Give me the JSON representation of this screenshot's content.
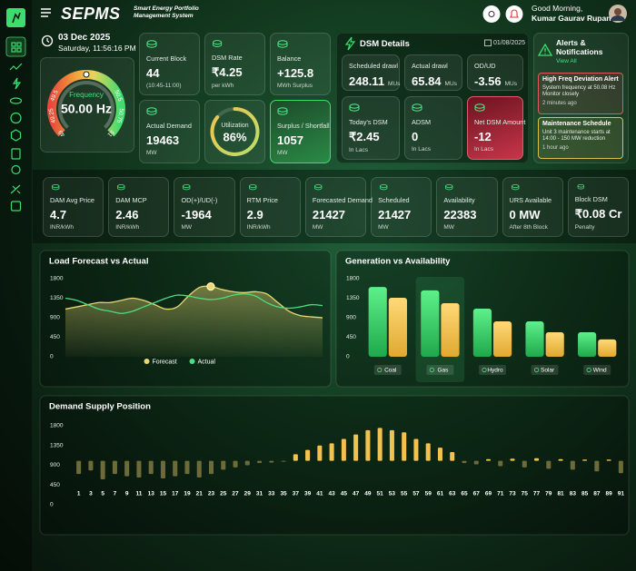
{
  "header": {
    "logo": "SEPMS",
    "subtitle": "Smart Energy Portfolio Management System",
    "greeting": "Good Morning,",
    "user": "Kumar Gaurav Rupani"
  },
  "clock": {
    "date": "03 Dec 2025",
    "time": "Saturday, 11:56:16 PM"
  },
  "frequency": {
    "label": "Frequency",
    "value": 50,
    "value_label": "50.00 Hz",
    "range": [
      49,
      51
    ],
    "ticks": [
      49,
      49.25,
      49.5,
      50.5,
      50.75,
      51
    ]
  },
  "cards": [
    {
      "label": "Current Block",
      "value": "44",
      "unit": "(10:45-11:00)"
    },
    {
      "label": "DSM Rate",
      "value": "₹4.25",
      "unit": "per kWh"
    },
    {
      "label": "Balance",
      "value": "+125.8",
      "unit": "MWh Surplus"
    },
    {
      "label": "Actual Demand",
      "value": "19463",
      "unit": "MW"
    },
    {
      "label": "Surplus / Shortfall",
      "value": "1057",
      "unit": "MW"
    }
  ],
  "utilization": {
    "label": "Utilization",
    "value": 86,
    "value_label": "86%"
  },
  "dsm": {
    "title": "DSM Details",
    "date": "01/08/2025",
    "tiles": [
      {
        "label": "Scheduled drawl",
        "value": "248.11",
        "unit": "MUs"
      },
      {
        "label": "Actual drawl",
        "value": "65.84",
        "unit": "MUs"
      },
      {
        "label": "OD/UD",
        "value": "-3.56",
        "unit": "MUs"
      },
      {
        "label": "Today's DSM",
        "value": "₹2.45",
        "unit": "In Lacs"
      },
      {
        "label": "ADSM",
        "value": "0",
        "unit": "In Lacs"
      },
      {
        "label": "Net DSM Amount",
        "value": "-12",
        "unit": "In Lacs"
      }
    ]
  },
  "alerts": {
    "title": "Alerts & Notifications",
    "action": "View All",
    "items": [
      {
        "title": "High Freq Deviation Alert",
        "message": "System frequency at 50.08 Hz Monitor closely",
        "time": "2 minutes ago"
      },
      {
        "title": "Maintenance Schedule",
        "message": "Unit 3 maintenance starts at 14:00 - 150 MW reduction",
        "time": "1 hour ago"
      }
    ]
  },
  "kpis": [
    {
      "label": "DAM Avg Price",
      "value": "4.7",
      "unit": "INR/kWh"
    },
    {
      "label": "DAM MCP",
      "value": "2.46",
      "unit": "INR/kWh"
    },
    {
      "label": "OD(+)/UD(-)",
      "value": "-1964",
      "unit": "MW"
    },
    {
      "label": "RTM Price",
      "value": "2.9",
      "unit": "INR/kWh"
    },
    {
      "label": "Forecasted Demand",
      "value": "21427",
      "unit": "MW"
    },
    {
      "label": "Scheduled",
      "value": "21427",
      "unit": "MW"
    },
    {
      "label": "Availability",
      "value": "22383",
      "unit": "MW"
    },
    {
      "label": "URS Available",
      "value": "0 MW",
      "unit": "After 8th Block"
    },
    {
      "label": "Block DSM",
      "value": "₹0.08 Cr",
      "unit": "Penalty"
    }
  ],
  "chart_data": [
    {
      "type": "line",
      "title": "Load Forecast vs Actual",
      "categories": [
        null,
        null,
        null,
        null,
        null,
        null,
        null,
        null,
        null,
        null,
        null,
        null,
        null,
        null,
        null,
        null,
        null,
        null,
        null,
        null,
        null,
        null,
        null,
        null
      ],
      "series": [
        {
          "name": "Forecast",
          "color": "#e9d873",
          "area": true,
          "marker": 13,
          "values": [
            1100,
            1150,
            1200,
            1250,
            1250,
            1300,
            1350,
            1300,
            1200,
            1100,
            1150,
            1400,
            1600,
            1620,
            1550,
            1500,
            1480,
            1500,
            1450,
            1250,
            1050,
            950,
            920,
            900
          ]
        },
        {
          "name": "Actual",
          "color": "#4ade80",
          "values": [
            1350,
            1300,
            1200,
            1100,
            1050,
            1000,
            1050,
            1150,
            1250,
            1350,
            1420,
            1400,
            1350,
            1320,
            1350,
            1420,
            1450,
            1400,
            1250,
            1150,
            1120,
            1150,
            1200,
            1180
          ]
        }
      ],
      "ylim": [
        0,
        1800
      ],
      "yticks": [
        0,
        450,
        900,
        1350,
        1800
      ]
    },
    {
      "type": "bar",
      "title": "Generation vs Availability",
      "categories": [
        "Coal",
        "Gas",
        "Hydro",
        "Solar",
        "Wind"
      ],
      "series": [
        {
          "color": "#3ddc6e",
          "values": [
            1610,
            1530,
            1110,
            815,
            565
          ]
        },
        {
          "color": "#f2c14e",
          "values": [
            1360,
            1235,
            815,
            565,
            400
          ]
        }
      ],
      "highlight_category": 1,
      "ylim": [
        0,
        1800
      ],
      "yticks": [
        0,
        450,
        900,
        1350,
        1800
      ]
    },
    {
      "type": "bar",
      "title": "Demand Supply Position",
      "categories": [
        1,
        3,
        5,
        7,
        9,
        11,
        13,
        15,
        17,
        19,
        21,
        23,
        25,
        27,
        29,
        31,
        33,
        35,
        37,
        39,
        41,
        43,
        45,
        47,
        49,
        51,
        53,
        55,
        57,
        59,
        61,
        63,
        65,
        67,
        69,
        71,
        73,
        75,
        77,
        79,
        81,
        83,
        85,
        87,
        89,
        91
      ],
      "values": [
        700,
        780,
        580,
        700,
        650,
        620,
        700,
        600,
        650,
        700,
        620,
        700,
        800,
        850,
        900,
        950,
        960,
        980,
        1150,
        1250,
        1350,
        1400,
        1500,
        1600,
        1700,
        1750,
        1700,
        1650,
        1500,
        1400,
        1300,
        1200,
        950,
        920,
        1040,
        880,
        1050,
        850,
        1060,
        820,
        1040,
        800,
        1030,
        760,
        1030,
        720
      ],
      "base": 1000,
      "color_above": "#f2c14e",
      "color_below": "#6e6b3a",
      "ylim": [
        0,
        1800
      ],
      "yticks": [
        0,
        450,
        900,
        1350,
        1800
      ]
    }
  ]
}
